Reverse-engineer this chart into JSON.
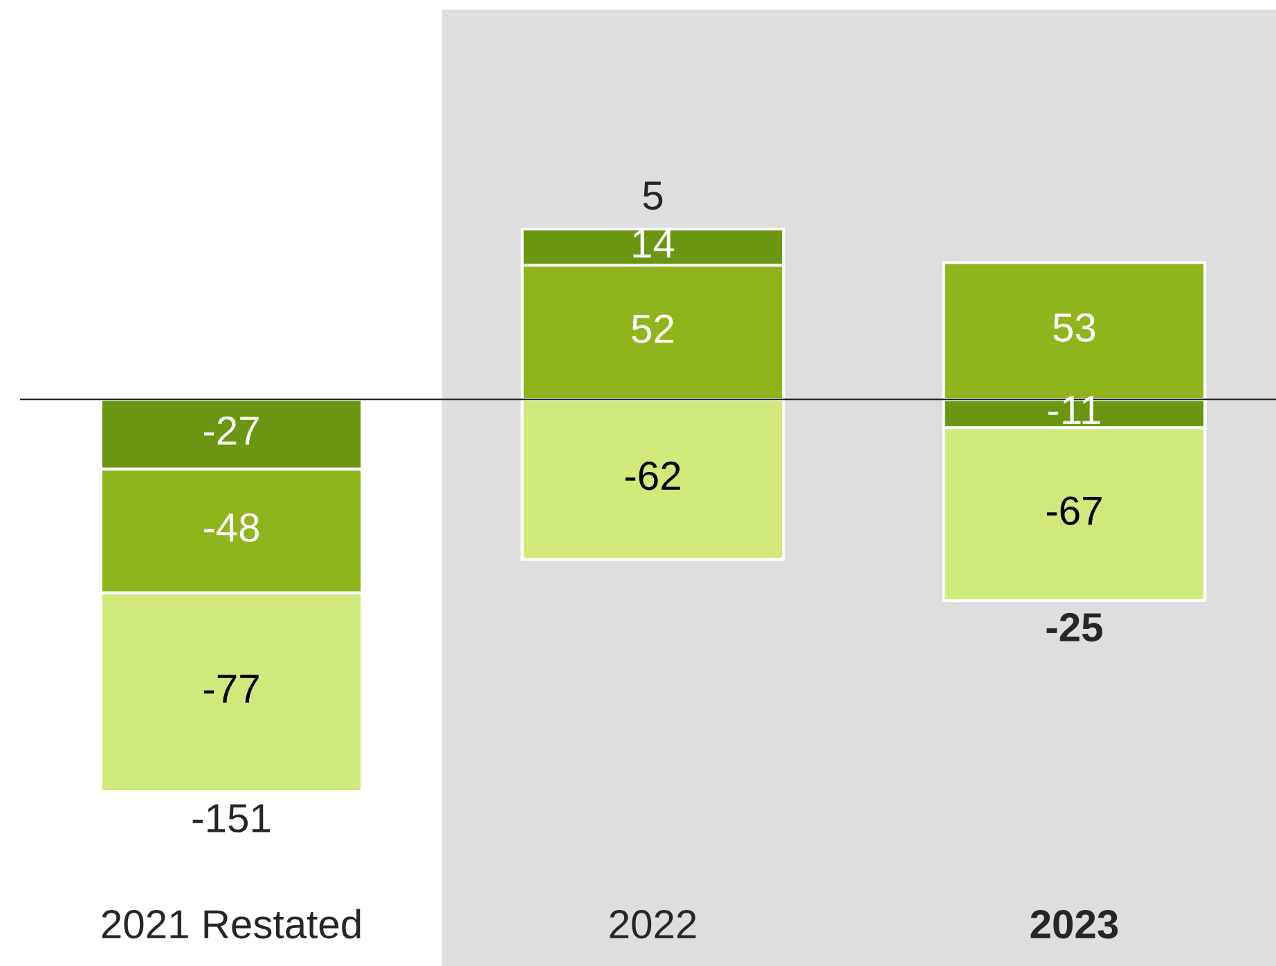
{
  "chart_data": {
    "type": "bar",
    "categories": [
      "2021 Restated",
      "2022",
      "2023"
    ],
    "stacked": true,
    "series": [
      {
        "color": "#6a9611",
        "values": [
          -27,
          null,
          -11
        ]
      },
      {
        "color": "#8fb51c",
        "values": [
          -48,
          52,
          53
        ]
      },
      {
        "color": "#cfea7a",
        "values": [
          -77,
          -62,
          -67
        ]
      },
      {
        "color": "#6a9611",
        "values": [
          null,
          14,
          null
        ]
      }
    ],
    "data_labels": true,
    "totals": [
      "-151",
      "5",
      "-25"
    ],
    "bands": [
      {
        "axis": "x",
        "from": "2022",
        "to": "2023",
        "color": "#dedede"
      }
    ],
    "grid": false,
    "legend": false
  }
}
